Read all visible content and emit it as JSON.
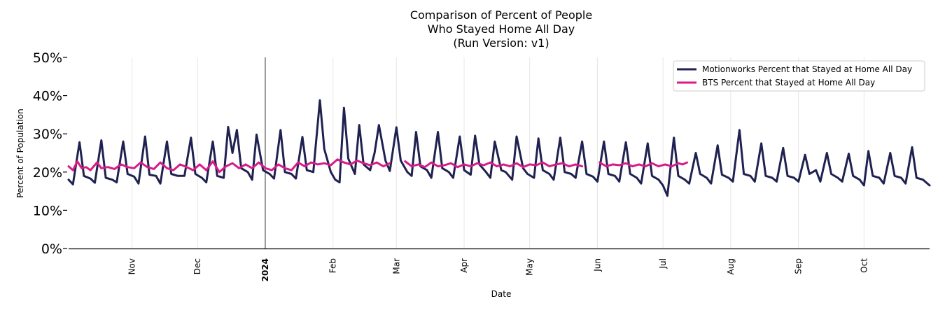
{
  "chart_data": {
    "type": "line",
    "title": [
      "Comparison of Percent of People",
      "Who Stayed Home All Day",
      "(Run Version: v1)"
    ],
    "xlabel": "Date",
    "ylabel": "Percent of Population",
    "ylim": [
      0,
      50
    ],
    "yticks": [
      {
        "value": 0,
        "label": "0%"
      },
      {
        "value": 10,
        "label": "10%"
      },
      {
        "value": 20,
        "label": "20%"
      },
      {
        "value": 30,
        "label": "30%"
      },
      {
        "value": 40,
        "label": "40%"
      },
      {
        "value": 50,
        "label": "50%"
      }
    ],
    "xrange": [
      "2023-10-03",
      "2024-10-31"
    ],
    "xticks": [
      {
        "date": "2023-11-01",
        "label": "Nov",
        "bold": false
      },
      {
        "date": "2023-12-01",
        "label": "Dec",
        "bold": false
      },
      {
        "date": "2024-01-01",
        "label": "2024",
        "bold": true
      },
      {
        "date": "2024-02-01",
        "label": "Feb",
        "bold": false
      },
      {
        "date": "2024-03-01",
        "label": "Mar",
        "bold": false
      },
      {
        "date": "2024-04-01",
        "label": "Apr",
        "bold": false
      },
      {
        "date": "2024-05-01",
        "label": "May",
        "bold": false
      },
      {
        "date": "2024-06-01",
        "label": "Jun",
        "bold": false
      },
      {
        "date": "2024-07-01",
        "label": "Jul",
        "bold": false
      },
      {
        "date": "2024-08-01",
        "label": "Aug",
        "bold": false
      },
      {
        "date": "2024-09-01",
        "label": "Sep",
        "bold": false
      },
      {
        "date": "2024-10-01",
        "label": "Oct",
        "bold": false
      }
    ],
    "vertical_marker": "2024-01-01",
    "legend_position": "top-right",
    "series": [
      {
        "name": "Motionworks Percent that Stayed at Home All Day",
        "color": "#1f2150",
        "points": [
          [
            "2023-10-03",
            18.0
          ],
          [
            "2023-10-05",
            16.8
          ],
          [
            "2023-10-08",
            27.8
          ],
          [
            "2023-10-10",
            19.0
          ],
          [
            "2023-10-13",
            18.3
          ],
          [
            "2023-10-15",
            17.2
          ],
          [
            "2023-10-18",
            28.3
          ],
          [
            "2023-10-20",
            18.5
          ],
          [
            "2023-10-23",
            18.0
          ],
          [
            "2023-10-25",
            17.3
          ],
          [
            "2023-10-28",
            28.0
          ],
          [
            "2023-10-30",
            19.5
          ],
          [
            "2023-11-02",
            18.8
          ],
          [
            "2023-11-04",
            17.0
          ],
          [
            "2023-11-07",
            29.3
          ],
          [
            "2023-11-09",
            19.3
          ],
          [
            "2023-11-12",
            19.0
          ],
          [
            "2023-11-14",
            17.0
          ],
          [
            "2023-11-17",
            28.0
          ],
          [
            "2023-11-19",
            19.5
          ],
          [
            "2023-11-22",
            19.0
          ],
          [
            "2023-11-25",
            19.0
          ],
          [
            "2023-11-28",
            29.0
          ],
          [
            "2023-11-30",
            19.5
          ],
          [
            "2023-12-03",
            18.5
          ],
          [
            "2023-12-05",
            17.3
          ],
          [
            "2023-12-08",
            28.0
          ],
          [
            "2023-12-10",
            19.0
          ],
          [
            "2023-12-13",
            18.5
          ],
          [
            "2023-12-15",
            31.8
          ],
          [
            "2023-12-17",
            25.0
          ],
          [
            "2023-12-19",
            31.0
          ],
          [
            "2023-12-21",
            21.0
          ],
          [
            "2023-12-24",
            20.0
          ],
          [
            "2023-12-26",
            18.0
          ],
          [
            "2023-12-28",
            29.8
          ],
          [
            "2023-12-31",
            20.5
          ],
          [
            "2024-01-03",
            19.5
          ],
          [
            "2024-01-05",
            18.3
          ],
          [
            "2024-01-08",
            31.0
          ],
          [
            "2024-01-10",
            20.0
          ],
          [
            "2024-01-13",
            19.5
          ],
          [
            "2024-01-15",
            18.3
          ],
          [
            "2024-01-18",
            29.2
          ],
          [
            "2024-01-20",
            20.5
          ],
          [
            "2024-01-23",
            20.0
          ],
          [
            "2024-01-26",
            38.8
          ],
          [
            "2024-01-28",
            26.0
          ],
          [
            "2024-01-31",
            20.0
          ],
          [
            "2024-02-02",
            18.0
          ],
          [
            "2024-02-04",
            17.3
          ],
          [
            "2024-02-06",
            36.8
          ],
          [
            "2024-02-08",
            23.5
          ],
          [
            "2024-02-11",
            19.5
          ],
          [
            "2024-02-13",
            32.3
          ],
          [
            "2024-02-15",
            22.0
          ],
          [
            "2024-02-18",
            20.5
          ],
          [
            "2024-02-20",
            25.0
          ],
          [
            "2024-02-22",
            32.3
          ],
          [
            "2024-02-25",
            23.0
          ],
          [
            "2024-02-27",
            20.3
          ],
          [
            "2024-03-01",
            31.7
          ],
          [
            "2024-03-03",
            23.0
          ],
          [
            "2024-03-06",
            20.0
          ],
          [
            "2024-03-08",
            19.0
          ],
          [
            "2024-03-10",
            30.5
          ],
          [
            "2024-03-12",
            21.5
          ],
          [
            "2024-03-15",
            20.5
          ],
          [
            "2024-03-17",
            18.5
          ],
          [
            "2024-03-20",
            30.5
          ],
          [
            "2024-03-22",
            21.0
          ],
          [
            "2024-03-25",
            20.0
          ],
          [
            "2024-03-27",
            18.5
          ],
          [
            "2024-03-30",
            29.3
          ],
          [
            "2024-04-01",
            20.5
          ],
          [
            "2024-04-04",
            19.3
          ],
          [
            "2024-04-06",
            29.5
          ],
          [
            "2024-04-08",
            22.0
          ],
          [
            "2024-04-11",
            20.0
          ],
          [
            "2024-04-13",
            18.5
          ],
          [
            "2024-04-15",
            28.0
          ],
          [
            "2024-04-18",
            20.5
          ],
          [
            "2024-04-20",
            20.0
          ],
          [
            "2024-04-23",
            18.0
          ],
          [
            "2024-04-25",
            29.3
          ],
          [
            "2024-04-28",
            21.0
          ],
          [
            "2024-04-30",
            19.5
          ],
          [
            "2024-05-03",
            18.5
          ],
          [
            "2024-05-05",
            28.8
          ],
          [
            "2024-05-07",
            20.5
          ],
          [
            "2024-05-10",
            19.5
          ],
          [
            "2024-05-12",
            18.0
          ],
          [
            "2024-05-15",
            29.0
          ],
          [
            "2024-05-17",
            20.0
          ],
          [
            "2024-05-20",
            19.5
          ],
          [
            "2024-05-22",
            18.5
          ],
          [
            "2024-05-25",
            28.0
          ],
          [
            "2024-05-27",
            19.5
          ],
          [
            "2024-05-30",
            18.8
          ],
          [
            "2024-06-01",
            17.5
          ],
          [
            "2024-06-04",
            28.0
          ],
          [
            "2024-06-06",
            19.5
          ],
          [
            "2024-06-09",
            19.0
          ],
          [
            "2024-06-11",
            17.5
          ],
          [
            "2024-06-14",
            27.8
          ],
          [
            "2024-06-16",
            19.5
          ],
          [
            "2024-06-19",
            18.5
          ],
          [
            "2024-06-21",
            17.0
          ],
          [
            "2024-06-24",
            27.5
          ],
          [
            "2024-06-26",
            19.0
          ],
          [
            "2024-06-29",
            18.0
          ],
          [
            "2024-07-01",
            16.5
          ],
          [
            "2024-07-03",
            13.8
          ],
          [
            "2024-07-06",
            29.0
          ],
          [
            "2024-07-08",
            19.0
          ],
          [
            "2024-07-11",
            18.0
          ],
          [
            "2024-07-13",
            17.0
          ],
          [
            "2024-07-16",
            25.0
          ],
          [
            "2024-07-18",
            19.5
          ],
          [
            "2024-07-21",
            18.5
          ],
          [
            "2024-07-23",
            17.0
          ],
          [
            "2024-07-26",
            27.0
          ],
          [
            "2024-07-28",
            19.3
          ],
          [
            "2024-07-31",
            18.5
          ],
          [
            "2024-08-02",
            17.5
          ],
          [
            "2024-08-05",
            31.0
          ],
          [
            "2024-08-07",
            19.5
          ],
          [
            "2024-08-10",
            19.0
          ],
          [
            "2024-08-12",
            17.5
          ],
          [
            "2024-08-15",
            27.5
          ],
          [
            "2024-08-17",
            19.0
          ],
          [
            "2024-08-20",
            18.5
          ],
          [
            "2024-08-22",
            17.5
          ],
          [
            "2024-08-25",
            26.3
          ],
          [
            "2024-08-27",
            19.0
          ],
          [
            "2024-08-30",
            18.5
          ],
          [
            "2024-09-01",
            17.5
          ],
          [
            "2024-09-04",
            24.5
          ],
          [
            "2024-09-06",
            19.5
          ],
          [
            "2024-09-09",
            20.5
          ],
          [
            "2024-09-11",
            17.5
          ],
          [
            "2024-09-14",
            25.0
          ],
          [
            "2024-09-16",
            19.5
          ],
          [
            "2024-09-19",
            18.5
          ],
          [
            "2024-09-21",
            17.5
          ],
          [
            "2024-09-24",
            24.8
          ],
          [
            "2024-09-26",
            19.0
          ],
          [
            "2024-09-29",
            18.0
          ],
          [
            "2024-10-01",
            16.5
          ],
          [
            "2024-10-03",
            25.5
          ],
          [
            "2024-10-05",
            19.0
          ],
          [
            "2024-10-08",
            18.5
          ],
          [
            "2024-10-10",
            17.0
          ],
          [
            "2024-10-13",
            25.0
          ],
          [
            "2024-10-15",
            19.0
          ],
          [
            "2024-10-18",
            18.5
          ],
          [
            "2024-10-20",
            17.0
          ],
          [
            "2024-10-23",
            26.5
          ],
          [
            "2024-10-25",
            18.5
          ],
          [
            "2024-10-28",
            18.0
          ],
          [
            "2024-10-31",
            16.5
          ]
        ]
      },
      {
        "name": "BTS Percent that Stayed at Home All Day",
        "color": "#d81b8a",
        "points": [
          [
            "2023-10-03",
            21.5
          ],
          [
            "2023-10-05",
            20.5
          ],
          [
            "2023-10-07",
            22.8
          ],
          [
            "2023-10-09",
            21.0
          ],
          [
            "2023-10-11",
            21.3
          ],
          [
            "2023-10-13",
            20.5
          ],
          [
            "2023-10-16",
            22.5
          ],
          [
            "2023-10-18",
            21.0
          ],
          [
            "2023-10-21",
            21.3
          ],
          [
            "2023-10-24",
            20.8
          ],
          [
            "2023-10-27",
            22.0
          ],
          [
            "2023-10-30",
            21.3
          ],
          [
            "2023-11-02",
            21.0
          ],
          [
            "2023-11-05",
            22.5
          ],
          [
            "2023-11-08",
            21.3
          ],
          [
            "2023-11-11",
            20.8
          ],
          [
            "2023-11-14",
            22.5
          ],
          [
            "2023-11-17",
            21.0
          ],
          [
            "2023-11-20",
            20.5
          ],
          [
            "2023-11-23",
            22.0
          ],
          [
            "2023-11-26",
            21.3
          ],
          [
            "2023-11-29",
            20.5
          ],
          [
            "2023-12-02",
            22.0
          ],
          [
            "2023-12-05",
            20.5
          ],
          [
            "2023-12-08",
            22.8
          ],
          [
            "2023-12-11",
            20.0
          ],
          [
            "2023-12-14",
            21.5
          ],
          [
            "2023-12-17",
            22.3
          ],
          [
            "2023-12-20",
            21.0
          ],
          [
            "2023-12-23",
            22.0
          ],
          [
            "2023-12-26",
            21.0
          ],
          [
            "2023-12-29",
            22.5
          ],
          [
            "2024-01-01",
            21.0
          ],
          [
            "2024-01-04",
            20.5
          ],
          [
            "2024-01-07",
            22.0
          ],
          [
            "2024-01-10",
            21.0
          ],
          [
            "2024-01-13",
            20.5
          ],
          [
            "2024-01-16",
            22.5
          ],
          [
            "2024-01-19",
            21.5
          ],
          [
            "2024-01-22",
            22.5
          ],
          [
            "2024-01-25",
            22.0
          ],
          [
            "2024-01-28",
            22.3
          ],
          [
            "2024-01-31",
            21.8
          ],
          [
            "2024-02-03",
            23.3
          ],
          [
            "2024-02-06",
            22.5
          ],
          [
            "2024-02-09",
            22.0
          ],
          [
            "2024-02-12",
            23.0
          ],
          [
            "2024-02-15",
            22.3
          ],
          [
            "2024-02-18",
            21.8
          ],
          [
            "2024-02-21",
            22.5
          ],
          [
            "2024-02-24",
            21.5
          ],
          [
            "2024-02-27",
            22.3
          ],
          null,
          [
            "2024-03-05",
            22.8
          ],
          [
            "2024-03-08",
            21.5
          ],
          [
            "2024-03-11",
            22.0
          ],
          [
            "2024-03-14",
            21.3
          ],
          [
            "2024-03-17",
            22.5
          ],
          [
            "2024-03-20",
            21.5
          ],
          [
            "2024-03-23",
            21.8
          ],
          [
            "2024-03-26",
            22.3
          ],
          [
            "2024-03-29",
            21.3
          ],
          [
            "2024-04-01",
            22.0
          ],
          [
            "2024-04-04",
            21.5
          ],
          [
            "2024-04-07",
            22.3
          ],
          [
            "2024-04-10",
            21.8
          ],
          [
            "2024-04-13",
            22.5
          ],
          [
            "2024-04-16",
            21.5
          ],
          [
            "2024-04-19",
            22.0
          ],
          [
            "2024-04-22",
            21.5
          ],
          [
            "2024-04-25",
            22.3
          ],
          [
            "2024-04-28",
            21.3
          ],
          [
            "2024-05-01",
            22.0
          ],
          [
            "2024-05-04",
            21.8
          ],
          [
            "2024-05-07",
            22.5
          ],
          [
            "2024-05-10",
            21.5
          ],
          [
            "2024-05-13",
            22.0
          ],
          [
            "2024-05-16",
            22.3
          ],
          [
            "2024-05-19",
            21.5
          ],
          [
            "2024-05-22",
            22.0
          ],
          [
            "2024-05-25",
            21.5
          ],
          null,
          [
            "2024-06-02",
            22.5
          ],
          [
            "2024-06-05",
            21.5
          ],
          [
            "2024-06-08",
            22.0
          ],
          [
            "2024-06-11",
            21.8
          ],
          [
            "2024-06-14",
            22.3
          ],
          [
            "2024-06-17",
            21.5
          ],
          [
            "2024-06-20",
            22.0
          ],
          [
            "2024-06-23",
            21.5
          ],
          [
            "2024-06-26",
            22.3
          ],
          [
            "2024-06-29",
            21.5
          ],
          [
            "2024-07-02",
            22.0
          ],
          [
            "2024-07-05",
            21.5
          ],
          [
            "2024-07-08",
            22.3
          ],
          [
            "2024-07-10",
            22.0
          ],
          [
            "2024-07-12",
            22.5
          ]
        ]
      }
    ]
  }
}
